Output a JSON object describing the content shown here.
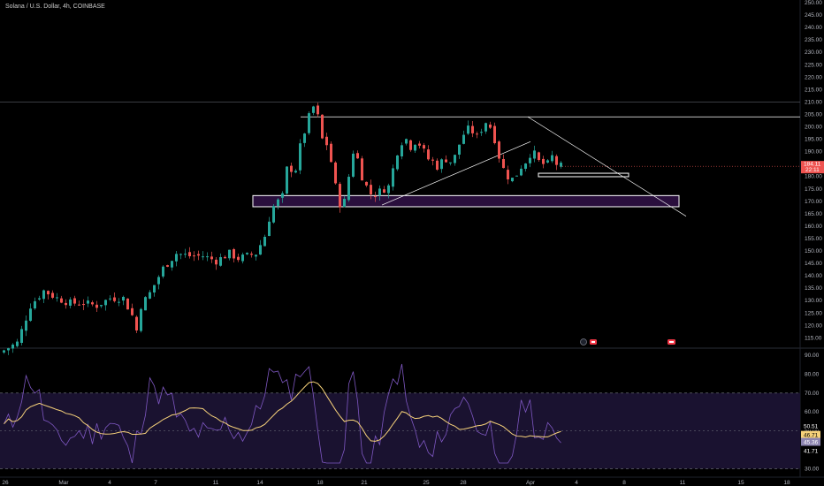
{
  "symbol_title": "Solana / U.S. Dollar, 4h, COINBASE",
  "colors": {
    "background": "#000000",
    "up": "#26a69a",
    "down": "#ef5350",
    "rsi_line": "#7e57c2",
    "rsi_ma": "#f7d27a",
    "rsi_band": "#1a1230",
    "zone_fill": "#2a0f3d",
    "drawing": "#ffffff"
  },
  "markers": {
    "icons": [
      "dividends-icon",
      "earnings-flag-icon",
      "earnings-flag-icon"
    ]
  },
  "chart_data": [
    {
      "type": "candlestick",
      "title": "Solana / U.S. Dollar, 4h, COINBASE",
      "y_ticks": [
        "250.00",
        "245.00",
        "240.00",
        "235.00",
        "230.00",
        "225.00",
        "220.00",
        "215.00",
        "210.00",
        "205.00",
        "200.00",
        "195.00",
        "190.00",
        "185.00",
        "180.00",
        "175.00",
        "170.00",
        "165.00",
        "160.00",
        "155.00",
        "150.00",
        "145.00",
        "140.00",
        "135.00",
        "130.00",
        "125.00",
        "120.00",
        "115.00"
      ],
      "ylim": [
        112,
        250
      ],
      "x_ticks": [
        "26",
        "Mar",
        "4",
        "7",
        "11",
        "14",
        "18",
        "21",
        "25",
        "28",
        "Apr",
        "4",
        "8",
        "11",
        "15",
        "18"
      ],
      "last_price": {
        "value": "184.11",
        "countdown": "22:11"
      },
      "close_path": [
        [
          0,
          110
        ],
        [
          3,
          113
        ],
        [
          6,
          128
        ],
        [
          9,
          134
        ],
        [
          12,
          131
        ],
        [
          15,
          129
        ],
        [
          18,
          129
        ],
        [
          21,
          128
        ],
        [
          24,
          131
        ],
        [
          27,
          131
        ],
        [
          29,
          124
        ],
        [
          30,
          118
        ],
        [
          31,
          128
        ],
        [
          33,
          133
        ],
        [
          36,
          143
        ],
        [
          39,
          149
        ],
        [
          42,
          148
        ],
        [
          45,
          148
        ],
        [
          48,
          146
        ],
        [
          51,
          149
        ],
        [
          53,
          147
        ],
        [
          55,
          148
        ],
        [
          57,
          149
        ],
        [
          59,
          156
        ],
        [
          60,
          163
        ],
        [
          61,
          168
        ],
        [
          63,
          172
        ],
        [
          64,
          183
        ],
        [
          66,
          183
        ],
        [
          67,
          192
        ],
        [
          68,
          198
        ],
        [
          69,
          204
        ],
        [
          70,
          208
        ],
        [
          71,
          204
        ],
        [
          72,
          195
        ],
        [
          73,
          193
        ],
        [
          74,
          186
        ],
        [
          75,
          176
        ],
        [
          76,
          169
        ],
        [
          77,
          170
        ],
        [
          78,
          180
        ],
        [
          79,
          190
        ],
        [
          80,
          187
        ],
        [
          81,
          180
        ],
        [
          82,
          176
        ],
        [
          83,
          173
        ],
        [
          84,
          173
        ],
        [
          85,
          174
        ],
        [
          86,
          175
        ],
        [
          87,
          176
        ],
        [
          88,
          183
        ],
        [
          89,
          190
        ],
        [
          90,
          194
        ],
        [
          91,
          195
        ],
        [
          92,
          192
        ],
        [
          93,
          194
        ],
        [
          94,
          193
        ],
        [
          95,
          190
        ],
        [
          96,
          187
        ],
        [
          97,
          186
        ],
        [
          98,
          184
        ],
        [
          99,
          186
        ],
        [
          100,
          187
        ],
        [
          101,
          186
        ],
        [
          102,
          188
        ],
        [
          103,
          193
        ],
        [
          104,
          197
        ],
        [
          105,
          199
        ],
        [
          106,
          198
        ],
        [
          107,
          196
        ],
        [
          108,
          199
        ],
        [
          109,
          202
        ],
        [
          110,
          200
        ],
        [
          111,
          195
        ],
        [
          112,
          188
        ],
        [
          113,
          183
        ],
        [
          114,
          180
        ],
        [
          115,
          179
        ],
        [
          116,
          181
        ],
        [
          117,
          184
        ],
        [
          118,
          186
        ],
        [
          119,
          189
        ],
        [
          120,
          189
        ],
        [
          121,
          186
        ],
        [
          122,
          185
        ],
        [
          123,
          185
        ],
        [
          124,
          188
        ],
        [
          125,
          185
        ],
        [
          126,
          184.11
        ]
      ]
    },
    {
      "type": "line",
      "name": "RSI",
      "y_ticks": [
        "90.00",
        "80.00",
        "70.00",
        "60.00",
        "50.00",
        "40.00",
        "30.00"
      ],
      "ylim": [
        30,
        90
      ],
      "band": [
        30,
        70
      ],
      "midline": 50,
      "labels": {
        "rsi_ma_a": "50.51",
        "rsi_ma_b": "46.71",
        "rsi_value_a": "45.36",
        "rsi_value_b": "41.71"
      }
    }
  ]
}
